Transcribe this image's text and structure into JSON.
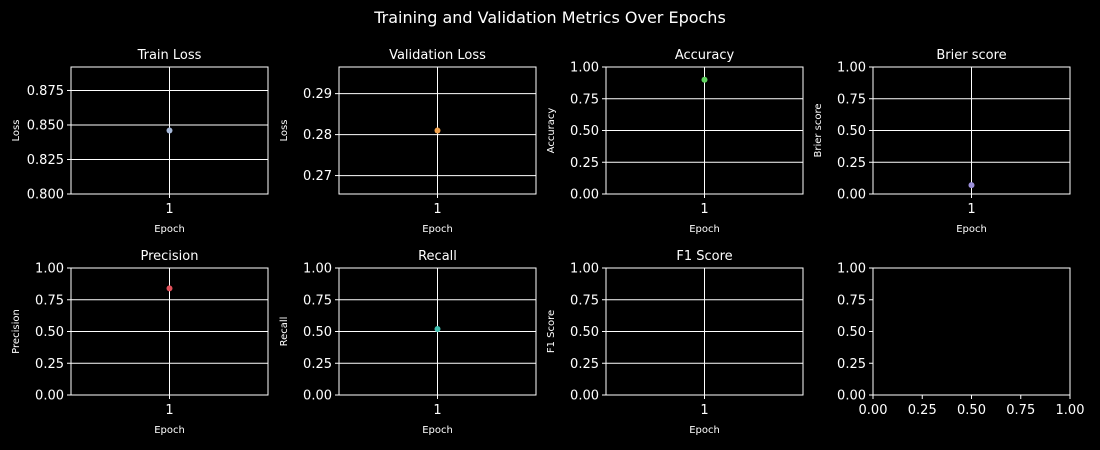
{
  "figure": {
    "title": "Training and Validation Metrics Over Epochs",
    "background": "#000000",
    "foreground": "#ffffff"
  },
  "chart_data": [
    {
      "type": "scatter",
      "title": "Train Loss",
      "xlabel": "Epoch",
      "ylabel": "Loss",
      "x": [
        1
      ],
      "y": [
        0.846
      ],
      "color": "#a6b8d8",
      "xticks": [
        1
      ],
      "yticks": [
        0.8,
        0.825,
        0.85,
        0.875
      ],
      "ytick_labels": [
        "0.800",
        "0.825",
        "0.850",
        "0.875"
      ],
      "xlim": [
        0.95,
        1.05
      ],
      "ylim": [
        0.8,
        0.892
      ],
      "grid": "both"
    },
    {
      "type": "scatter",
      "title": "Validation Loss",
      "xlabel": "Epoch",
      "ylabel": "Loss",
      "x": [
        1
      ],
      "y": [
        0.281
      ],
      "color": "#f0a04b",
      "xticks": [
        1
      ],
      "yticks": [
        0.27,
        0.28,
        0.29
      ],
      "ytick_labels": [
        "0.27",
        "0.28",
        "0.29"
      ],
      "xlim": [
        0.95,
        1.05
      ],
      "ylim": [
        0.2655,
        0.2965
      ],
      "grid": "both"
    },
    {
      "type": "scatter",
      "title": "Accuracy",
      "xlabel": "Epoch",
      "ylabel": "Accuracy",
      "x": [
        1
      ],
      "y": [
        0.9
      ],
      "color": "#5fd35f",
      "xticks": [
        1
      ],
      "yticks": [
        0.0,
        0.25,
        0.5,
        0.75,
        1.0
      ],
      "ytick_labels": [
        "0.00",
        "0.25",
        "0.50",
        "0.75",
        "1.00"
      ],
      "xlim": [
        0.95,
        1.05
      ],
      "ylim": [
        0,
        1
      ],
      "grid": "both"
    },
    {
      "type": "scatter",
      "title": "Brier score",
      "xlabel": "Epoch",
      "ylabel": "Brier score",
      "x": [
        1
      ],
      "y": [
        0.07
      ],
      "color": "#9b8fd8",
      "xticks": [
        1
      ],
      "yticks": [
        0.0,
        0.25,
        0.5,
        0.75,
        1.0
      ],
      "ytick_labels": [
        "0.00",
        "0.25",
        "0.50",
        "0.75",
        "1.00"
      ],
      "xlim": [
        0.95,
        1.05
      ],
      "ylim": [
        0,
        1
      ],
      "grid": "both"
    },
    {
      "type": "scatter",
      "title": "Precision",
      "xlabel": "Epoch",
      "ylabel": "Precision",
      "x": [
        1
      ],
      "y": [
        0.84
      ],
      "color": "#e0505a",
      "xticks": [
        1
      ],
      "yticks": [
        0.0,
        0.25,
        0.5,
        0.75,
        1.0
      ],
      "ytick_labels": [
        "0.00",
        "0.25",
        "0.50",
        "0.75",
        "1.00"
      ],
      "xlim": [
        0.95,
        1.05
      ],
      "ylim": [
        0,
        1
      ],
      "grid": "both"
    },
    {
      "type": "scatter",
      "title": "Recall",
      "xlabel": "Epoch",
      "ylabel": "Recall",
      "x": [
        1
      ],
      "y": [
        0.52
      ],
      "color": "#40c0b0",
      "xticks": [
        1
      ],
      "yticks": [
        0.0,
        0.25,
        0.5,
        0.75,
        1.0
      ],
      "ytick_labels": [
        "0.00",
        "0.25",
        "0.50",
        "0.75",
        "1.00"
      ],
      "xlim": [
        0.95,
        1.05
      ],
      "ylim": [
        0,
        1
      ],
      "grid": "both"
    },
    {
      "type": "scatter",
      "title": "F1 Score",
      "xlabel": "Epoch",
      "ylabel": "F1 Score",
      "x": [],
      "y": [],
      "color": "#ffffff",
      "xticks": [
        1
      ],
      "yticks": [
        0.0,
        0.25,
        0.5,
        0.75,
        1.0
      ],
      "ytick_labels": [
        "0.00",
        "0.25",
        "0.50",
        "0.75",
        "1.00"
      ],
      "xlim": [
        0.95,
        1.05
      ],
      "ylim": [
        0,
        1
      ],
      "grid": "both"
    },
    {
      "type": "scatter",
      "title": "",
      "xlabel": "",
      "ylabel": "",
      "x": [],
      "y": [],
      "color": "#ffffff",
      "xticks": [
        0.0,
        0.25,
        0.5,
        0.75,
        1.0
      ],
      "xtick_labels": [
        "0.00",
        "0.25",
        "0.50",
        "0.75",
        "1.00"
      ],
      "yticks": [
        0.0,
        0.25,
        0.5,
        0.75,
        1.0
      ],
      "ytick_labels": [
        "0.00",
        "0.25",
        "0.50",
        "0.75",
        "1.00"
      ],
      "xlim": [
        0,
        1
      ],
      "ylim": [
        0,
        1
      ],
      "grid": "none"
    }
  ]
}
